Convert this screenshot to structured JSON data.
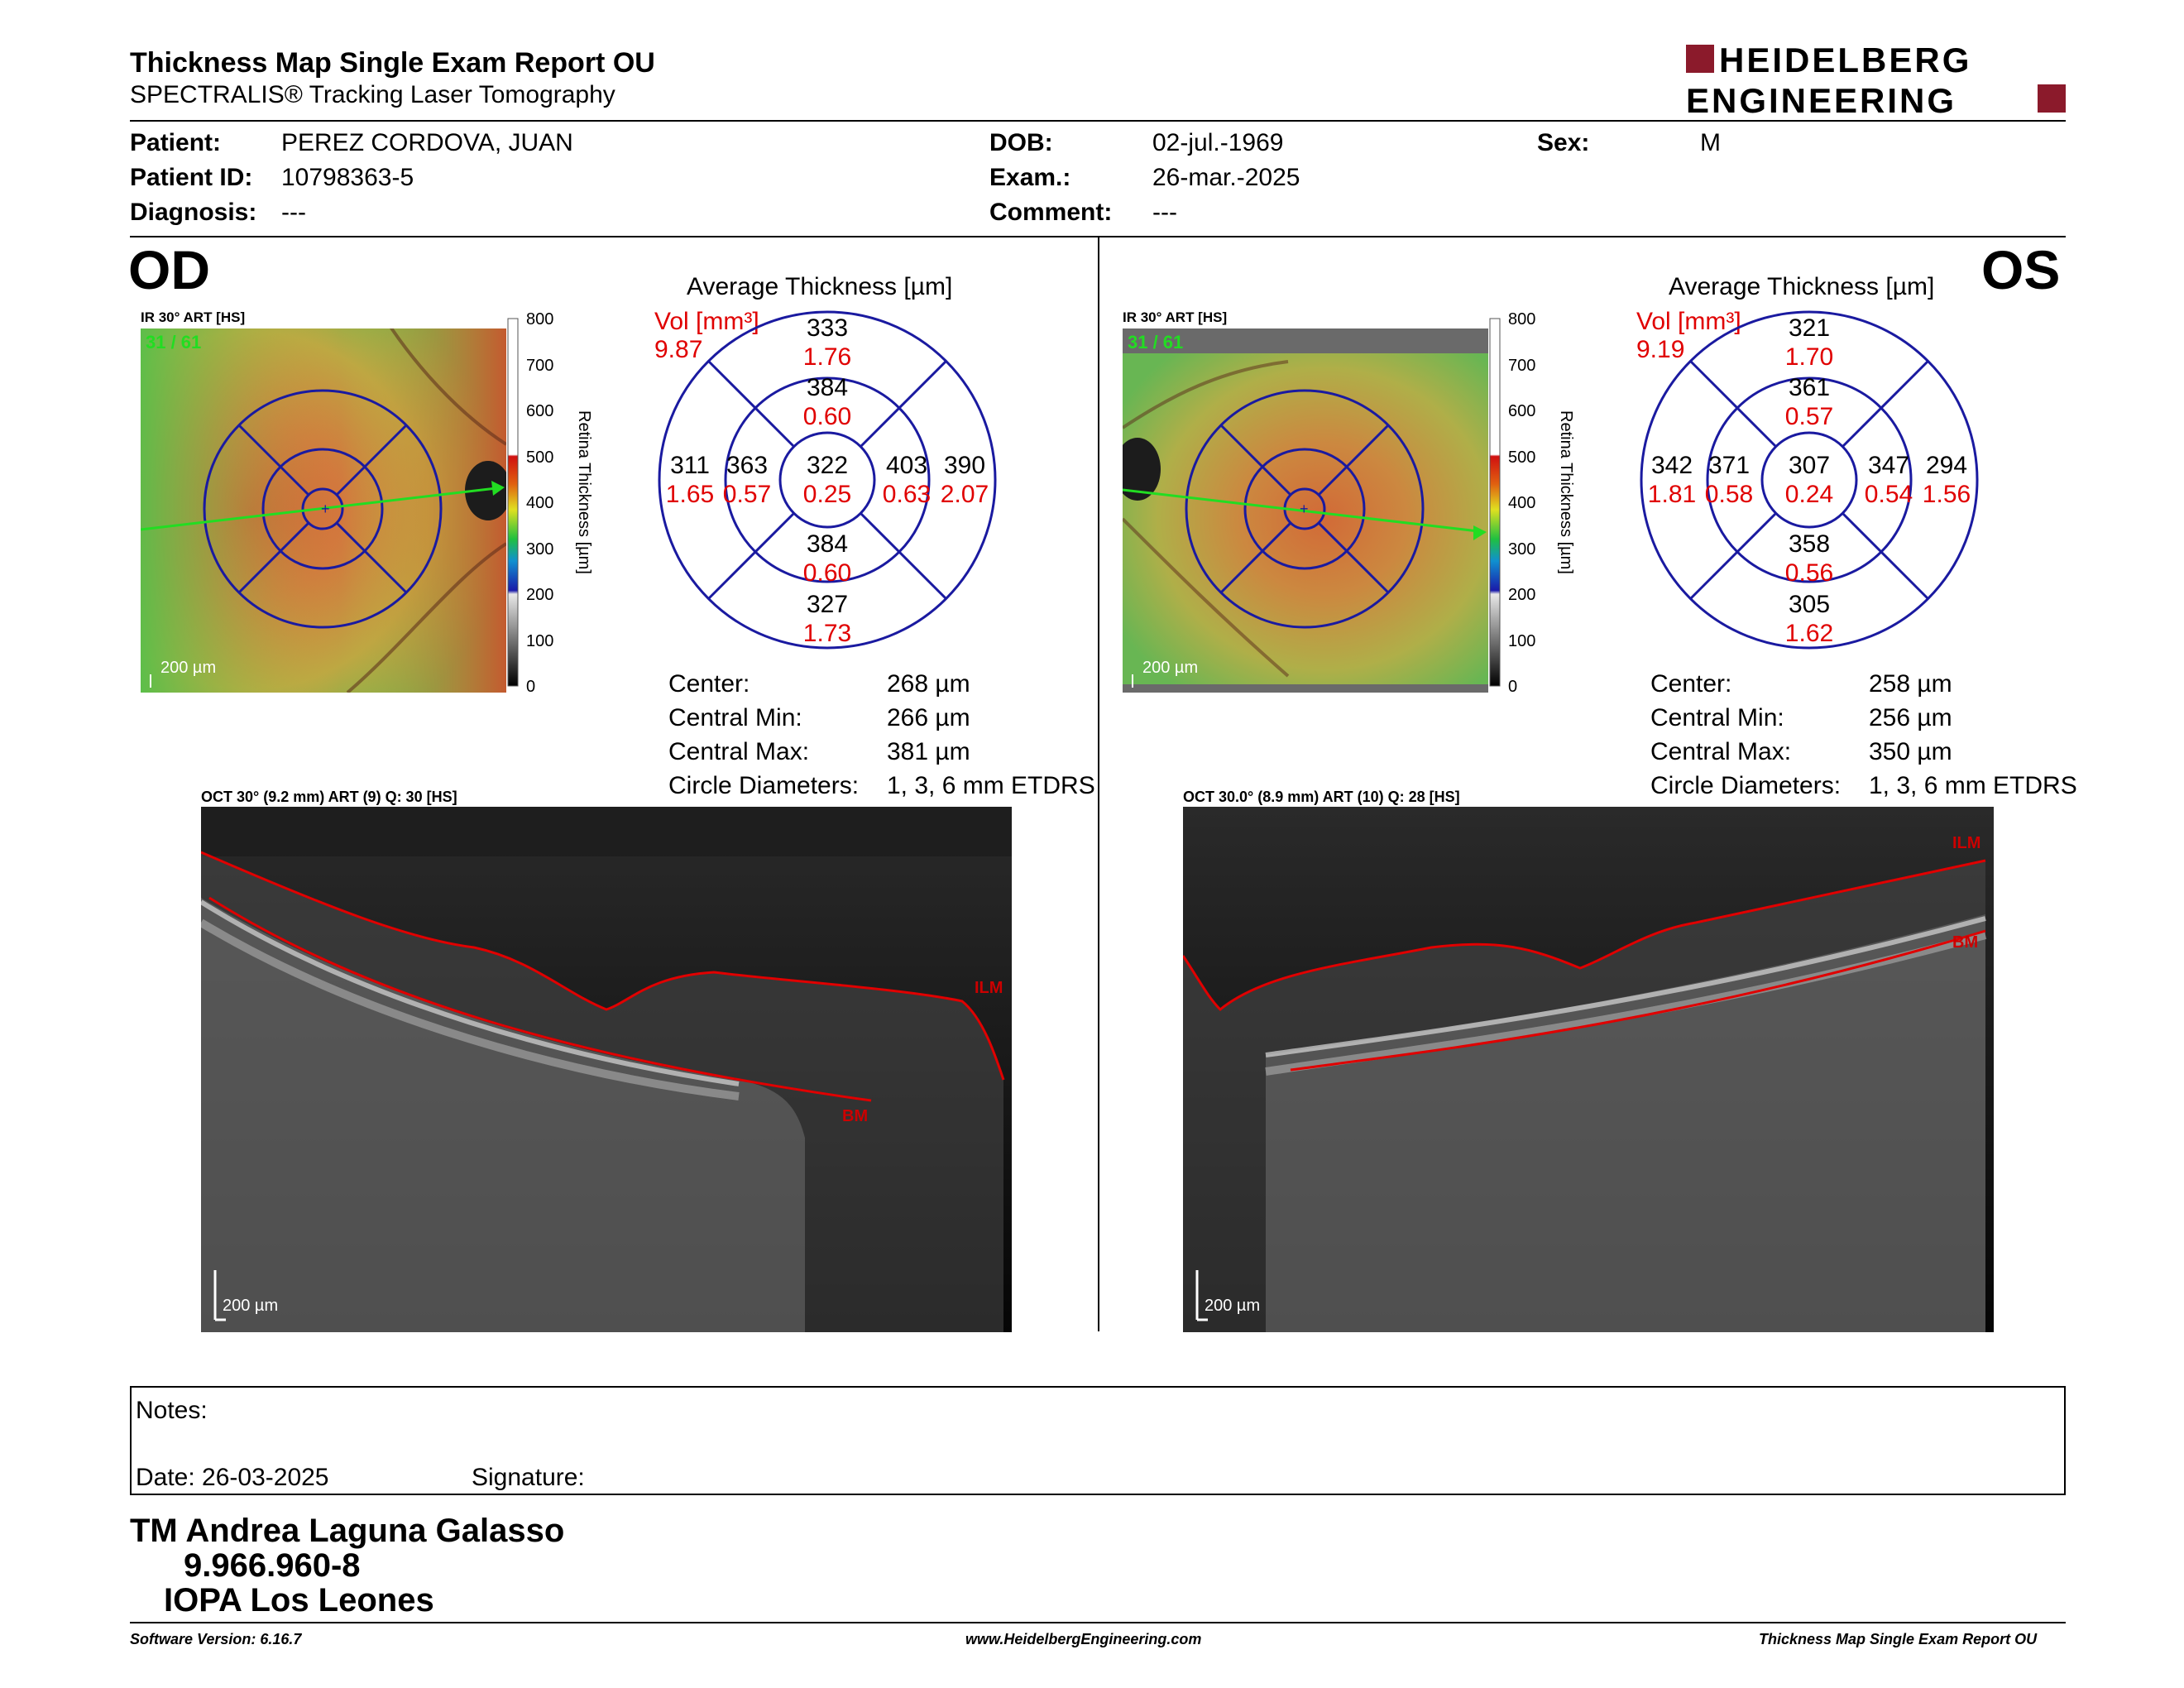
{
  "header": {
    "title": "Thickness Map Single Exam Report OU",
    "subtitle": "SPECTRALIS® Tracking Laser Tomography",
    "logo_line1": "HEIDELBERG",
    "logo_line2": "ENGINEERING",
    "logo_color": "#8b1a2b"
  },
  "patient": {
    "patient_label": "Patient:",
    "patient_value": "PEREZ CORDOVA, JUAN",
    "id_label": "Patient ID:",
    "id_value": "10798363-5",
    "diagnosis_label": "Diagnosis:",
    "diagnosis_value": "---",
    "dob_label": "DOB:",
    "dob_value": "02-jul.-1969",
    "exam_label": "Exam.:",
    "exam_value": "26-mar.-2025",
    "comment_label": "Comment:",
    "comment_value": "---",
    "sex_label": "Sex:",
    "sex_value": "M"
  },
  "od": {
    "eye": "OD",
    "ir_label": "IR 30° ART [HS]",
    "ir_counter": "31 / 61",
    "ir_scale": "200 µm",
    "avg_title": "Average Thickness [µm]",
    "vol_label": "Vol [mm³]",
    "vol_value": "9.87",
    "grid": {
      "center": {
        "t": "322",
        "v": "0.25"
      },
      "inner_sup": {
        "t": "384",
        "v": "0.60"
      },
      "inner_inf": {
        "t": "384",
        "v": "0.60"
      },
      "inner_left": {
        "t": "363",
        "v": "0.57"
      },
      "inner_right": {
        "t": "403",
        "v": "0.63"
      },
      "outer_sup": {
        "t": "333",
        "v": "1.76"
      },
      "outer_inf": {
        "t": "327",
        "v": "1.73"
      },
      "outer_left": {
        "t": "311",
        "v": "1.65"
      },
      "outer_right": {
        "t": "390",
        "v": "2.07"
      }
    },
    "stats": {
      "center_label": "Center:",
      "center_value": "268 µm",
      "min_label": "Central Min:",
      "min_value": "266 µm",
      "max_label": "Central Max:",
      "max_value": "381 µm",
      "circ_label": "Circle Diameters:",
      "circ_value": "1, 3, 6 mm ETDRS"
    },
    "oct_label": "OCT 30° (9.2 mm) ART (9) Q: 30 [HS]",
    "oct_scale": "200 µm",
    "ilm": "ILM",
    "bm": "BM"
  },
  "os": {
    "eye": "OS",
    "ir_label": "IR 30° ART [HS]",
    "ir_counter": "31 / 61",
    "ir_scale": "200 µm",
    "avg_title": "Average Thickness [µm]",
    "vol_label": "Vol [mm³]",
    "vol_value": "9.19",
    "grid": {
      "center": {
        "t": "307",
        "v": "0.24"
      },
      "inner_sup": {
        "t": "361",
        "v": "0.57"
      },
      "inner_inf": {
        "t": "358",
        "v": "0.56"
      },
      "inner_left": {
        "t": "371",
        "v": "0.58"
      },
      "inner_right": {
        "t": "347",
        "v": "0.54"
      },
      "outer_sup": {
        "t": "321",
        "v": "1.70"
      },
      "outer_inf": {
        "t": "305",
        "v": "1.62"
      },
      "outer_left": {
        "t": "342",
        "v": "1.81"
      },
      "outer_right": {
        "t": "294",
        "v": "1.56"
      }
    },
    "stats": {
      "center_label": "Center:",
      "center_value": "258 µm",
      "min_label": "Central Min:",
      "min_value": "256 µm",
      "max_label": "Central Max:",
      "max_value": "350 µm",
      "circ_label": "Circle Diameters:",
      "circ_value": "1, 3, 6 mm ETDRS"
    },
    "oct_label": "OCT 30.0° (8.9 mm) ART (10) Q: 28 [HS]",
    "oct_scale": "200 µm",
    "ilm": "ILM",
    "bm": "BM"
  },
  "colorbar": {
    "ticks": [
      "800",
      "700",
      "600",
      "500",
      "400",
      "300",
      "200",
      "100",
      "0"
    ],
    "label": "Retina  Thickness [µm]"
  },
  "notes": {
    "notes_label": "Notes:",
    "date_label": "Date: 26-03-2025",
    "signature_label": "Signature:"
  },
  "signer": {
    "name": "TM Andrea Laguna Galasso",
    "rut": "9.966.960-8",
    "institution": "IOPA Los Leones"
  },
  "footer": {
    "software": "Software Version: 6.16.7",
    "website": "www.HeidelbergEngineering.com",
    "report": "Thickness Map Single Exam Report OU"
  },
  "colors": {
    "grid_blue": "#1a1aa0",
    "vol_red": "#e00000",
    "scan_green": "#22dd22"
  }
}
